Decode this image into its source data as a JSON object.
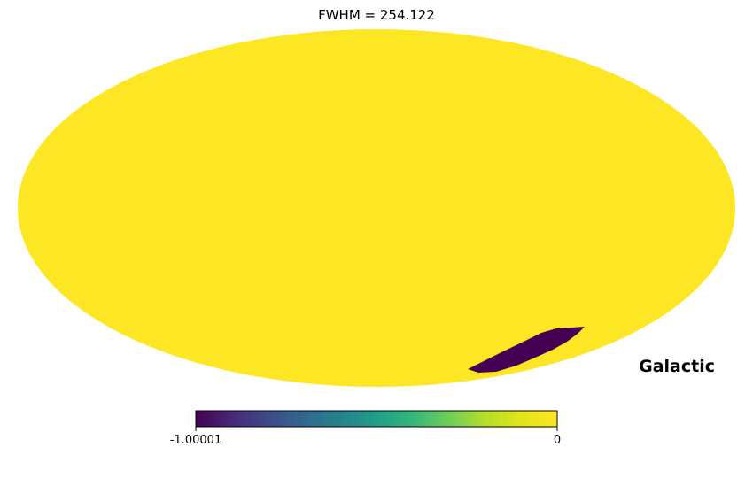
{
  "chart_data": {
    "type": "heatmap",
    "projection": "mollweide",
    "title": "FWHM = 254.122",
    "coord_label": "Galactic",
    "colormap": "viridis",
    "colorbar": {
      "min_label": "-1.00001",
      "max_label": "0",
      "range": [
        -1.00001,
        0
      ]
    },
    "background_value": 0,
    "masked_region_value": -1.00001,
    "colors": {
      "background_fill": "#fde725",
      "masked_fill": "#440154"
    }
  }
}
